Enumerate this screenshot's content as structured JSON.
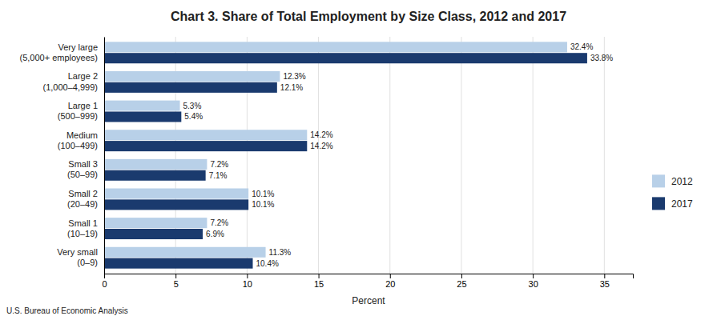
{
  "chart_data": {
    "type": "bar",
    "orientation": "horizontal",
    "title": "Chart 3. Share of Total Employment by Size Class, 2012 and 2017",
    "categories": [
      "Very small\n(0–9)",
      "Small 1\n(10–19)",
      "Small 2\n(20–49)",
      "Small 3\n(50–99)",
      "Medium\n(100–499)",
      "Large 1\n(500–999)",
      "Large 2\n(1,000–4,999)",
      "Very large\n(5,000+ employees)"
    ],
    "series": [
      {
        "name": "2012",
        "color": "#b8d0e8",
        "values": [
          11.3,
          7.2,
          10.1,
          7.2,
          14.2,
          5.3,
          12.3,
          32.4
        ],
        "value_labels": [
          "11.3%",
          "7.2%",
          "10.1%",
          "7.2%",
          "14.2%",
          "5.3%",
          "12.3%",
          "32.4%"
        ]
      },
      {
        "name": "2017",
        "color": "#1a3a6e",
        "values": [
          10.4,
          6.9,
          10.1,
          7.1,
          14.2,
          5.4,
          12.1,
          33.8
        ],
        "value_labels": [
          "10.4%",
          "6.9%",
          "10.1%",
          "7.1%",
          "14.2%",
          "5.4%",
          "12.1%",
          "33.8%"
        ]
      }
    ],
    "xlabel": "Percent",
    "xlim": [
      0,
      37
    ],
    "xticks": [
      0,
      5,
      10,
      15,
      20,
      25,
      30,
      35
    ],
    "grid": true,
    "legend": "right",
    "data_labels": true,
    "footnote": "U.S. Bureau of Economic Analysis"
  }
}
